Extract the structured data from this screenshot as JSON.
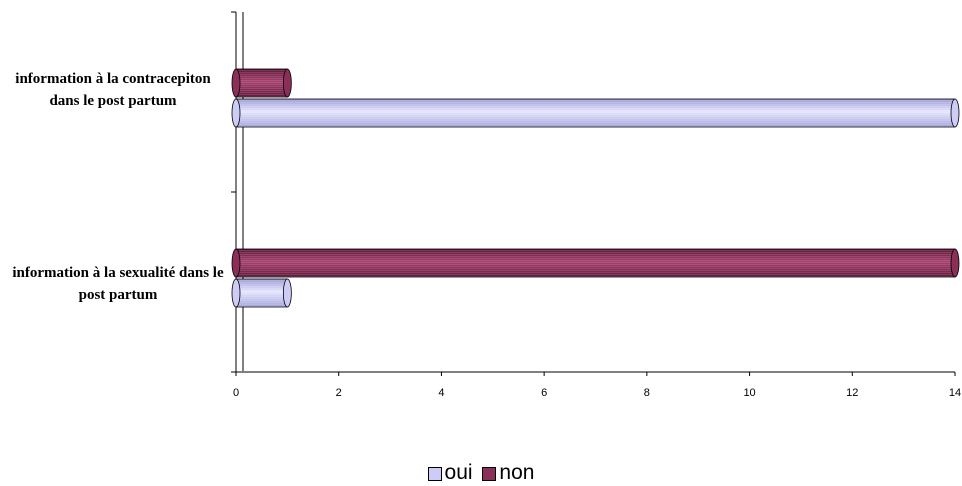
{
  "chart_data": {
    "type": "bar",
    "orientation": "horizontal",
    "categories": [
      "information à la contracepiton dans le post partum",
      "information à la sexualité dans le post partum"
    ],
    "series": [
      {
        "name": "oui",
        "values": [
          14,
          1
        ],
        "color": "#ccccf7"
      },
      {
        "name": "non",
        "values": [
          1,
          14
        ],
        "color": "#8b2f58"
      }
    ],
    "xlim": [
      0,
      14
    ],
    "ticks": [
      0,
      2,
      4,
      6,
      8,
      10,
      12,
      14
    ],
    "tick_labels": [
      "0",
      "2",
      "4",
      "6",
      "8",
      "10",
      "12",
      "14"
    ],
    "grid": false,
    "legend_position": "bottom",
    "style": "3d-cylinder"
  }
}
